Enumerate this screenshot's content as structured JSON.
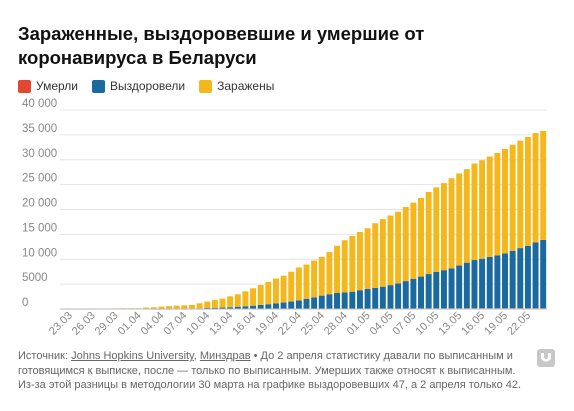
{
  "title": "Зараженные, выздоровевшие и умершие от коронавируса в Беларуси",
  "legend": [
    {
      "label": "Умерли",
      "color": "#e2472f"
    },
    {
      "label": "Выздоровели",
      "color": "#1a6aa0"
    },
    {
      "label": "Заражены",
      "color": "#f5b81c"
    }
  ],
  "source": {
    "prefix": "Источник: ",
    "link1": "Johns Hopkins University",
    "sep": ", ",
    "link2": "Минздрав",
    "note": " • До 2 апреля статистику давали по выписанным и готовящимся к выписке, после — только по выписанным. Умерших также относят к выписанным. Из-за этой разницы в методологии 30 марта на графике выздоровевших 47, а 2 апреля только 42."
  },
  "chart_data": {
    "type": "bar",
    "stacked": true,
    "ylim": [
      0,
      40000
    ],
    "yticks": [
      0,
      5000,
      10000,
      15000,
      20000,
      25000,
      30000,
      35000,
      40000
    ],
    "ytick_labels": [
      "0",
      "5000",
      "10 000",
      "15 000",
      "20 000",
      "25 000",
      "30 000",
      "35 000",
      "40 000"
    ],
    "grid": true,
    "categories": [
      "23.03",
      "24.03",
      "25.03",
      "26.03",
      "27.03",
      "28.03",
      "29.03",
      "30.03",
      "31.03",
      "01.04",
      "02.04",
      "03.04",
      "04.04",
      "05.04",
      "06.04",
      "07.04",
      "08.04",
      "09.04",
      "10.04",
      "11.04",
      "12.04",
      "13.04",
      "14.04",
      "15.04",
      "16.04",
      "17.04",
      "18.04",
      "19.04",
      "20.04",
      "21.04",
      "22.04",
      "23.04",
      "24.04",
      "25.04",
      "26.04",
      "27.04",
      "28.04",
      "29.04",
      "30.04",
      "01.05",
      "02.05",
      "03.05",
      "04.05",
      "05.05",
      "06.05",
      "07.05",
      "08.05",
      "09.05",
      "10.05",
      "11.05",
      "12.05",
      "13.05",
      "14.05",
      "15.05",
      "16.05",
      "17.05",
      "18.05",
      "19.05",
      "20.05",
      "21.05",
      "22.05",
      "23.05",
      "24.05"
    ],
    "tick_labels": [
      "23.03",
      "26.03",
      "29.03",
      "01.04",
      "04.04",
      "07.04",
      "10.04",
      "13.04",
      "16.04",
      "19.04",
      "22.04",
      "25.04",
      "28.04",
      "01.05",
      "04.05",
      "07.05",
      "10.05",
      "13.05",
      "16.05",
      "19.05",
      "22.05"
    ],
    "series": [
      {
        "name": "Умерли",
        "color": "#e2472f",
        "values": [
          0,
          0,
          0,
          0,
          0,
          0,
          0,
          0,
          0,
          0,
          0,
          1,
          2,
          2,
          4,
          5,
          8,
          9,
          13,
          16,
          19,
          23,
          26,
          29,
          33,
          36,
          40,
          42,
          45,
          47,
          51,
          55,
          58,
          60,
          63,
          67,
          72,
          75,
          79,
          84,
          89,
          93,
          99,
          103,
          107,
          112,
          116,
          121,
          124,
          128,
          131,
          135,
          138,
          142,
          146,
          151,
          156,
          160,
          165,
          170,
          175,
          179,
          184
        ]
      },
      {
        "name": "Выздоровели",
        "color": "#1a6aa0",
        "values": [
          15,
          15,
          16,
          16,
          20,
          25,
          30,
          47,
          50,
          50,
          42,
          48,
          53,
          65,
          70,
          90,
          110,
          140,
          185,
          220,
          265,
          330,
          430,
          520,
          630,
          780,
          920,
          1080,
          1250,
          1450,
          1700,
          1990,
          2280,
          2630,
          2900,
          3150,
          3250,
          3400,
          3700,
          3950,
          4150,
          4380,
          4700,
          5050,
          5500,
          5970,
          6400,
          6900,
          7320,
          7680,
          8050,
          8600,
          9170,
          9700,
          9960,
          10300,
          10600,
          11000,
          11550,
          12070,
          12520,
          13190,
          13700
        ]
      },
      {
        "name": "Заражены",
        "color": "#f5b81c",
        "values": [
          61,
          61,
          70,
          70,
          72,
          75,
          87,
          105,
          100,
          102,
          250,
          300,
          440,
          500,
          600,
          650,
          700,
          1000,
          1300,
          1600,
          1800,
          2200,
          2500,
          3000,
          3500,
          4000,
          4500,
          5000,
          5400,
          6000,
          6600,
          6900,
          7400,
          7800,
          8500,
          9500,
          10500,
          11200,
          11700,
          12200,
          13000,
          13600,
          14000,
          14400,
          14900,
          15300,
          15800,
          16500,
          17000,
          17500,
          18100,
          18500,
          18800,
          19400,
          19800,
          20200,
          20600,
          21000,
          21300,
          21600,
          21900,
          22000,
          21900
        ]
      }
    ]
  }
}
